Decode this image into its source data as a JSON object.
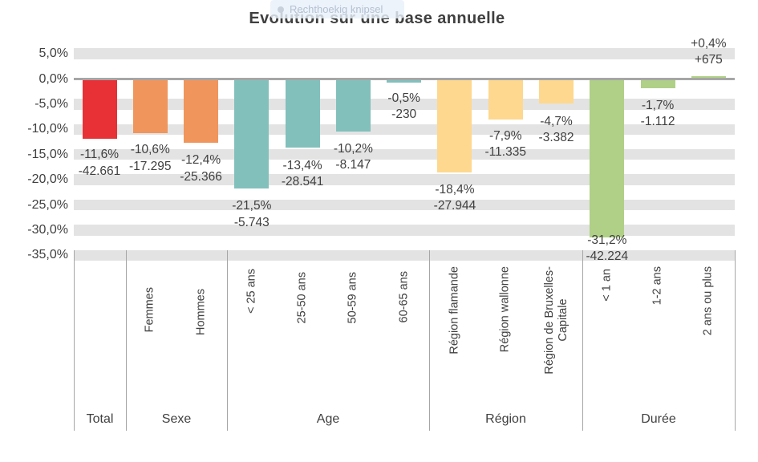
{
  "title": "Evolution sur une base annuelle",
  "snip_toolbar": {
    "icon": "snip-dot-icon",
    "label": "Rechthoekig knipsel"
  },
  "colors": {
    "total": "#e73137",
    "sexe": "#f0955c",
    "age": "#82c0bc",
    "region": "#fdd88e",
    "duree": "#afd086",
    "gridline_band": "#e3e3e3",
    "axis_line": "#a6a6a6",
    "text": "#404040"
  },
  "chart_data": {
    "type": "bar",
    "title": "Evolution sur une base annuelle",
    "ylabel": "",
    "xlabel": "",
    "ylim": [
      -35,
      5
    ],
    "y_axis": {
      "max": 5,
      "min": -35,
      "step": 5,
      "tick_labels": [
        "5,0%",
        "0,0%",
        "-5,0%",
        "-10,0%",
        "-15,0%",
        "-20,0%",
        "-25,0%",
        "-30,0%",
        "-35,0%"
      ],
      "gridlines": "thick-gray-bands"
    },
    "legend": "none",
    "groups": [
      {
        "label": "Total",
        "color": "#e73137",
        "bars": [
          {
            "category": "",
            "pct": -11.6,
            "pct_label": "-11,6%",
            "value_label": "-42.661"
          }
        ]
      },
      {
        "label": "Sexe",
        "color": "#f0955c",
        "bars": [
          {
            "category": "Femmes",
            "pct": -10.6,
            "pct_label": "-10,6%",
            "value_label": "-17.295"
          },
          {
            "category": "Hommes",
            "pct": -12.4,
            "pct_label": "-12,4%",
            "value_label": "-25.366"
          }
        ]
      },
      {
        "label": "Age",
        "color": "#82c0bc",
        "bars": [
          {
            "category": "< 25 ans",
            "pct": -21.5,
            "pct_label": "-21,5%",
            "value_label": "-5.743"
          },
          {
            "category": "25-50 ans",
            "pct": -13.4,
            "pct_label": "-13,4%",
            "value_label": "-28.541"
          },
          {
            "category": "50-59 ans",
            "pct": -10.2,
            "pct_label": "-10,2%",
            "value_label": "-8.147"
          },
          {
            "category": "60-65 ans",
            "pct": -0.5,
            "pct_label": "-0,5%",
            "value_label": "-230"
          }
        ]
      },
      {
        "label": "Région",
        "color": "#fdd88e",
        "bars": [
          {
            "category": "Région flamande",
            "pct": -18.4,
            "pct_label": "-18,4%",
            "value_label": "-27.944"
          },
          {
            "category": "Région wallonne",
            "pct": -7.9,
            "pct_label": "-7,9%",
            "value_label": "-11.335"
          },
          {
            "category": "Région de Bruxelles-\nCapitale",
            "pct": -4.7,
            "pct_label": "-4,7%",
            "value_label": "-3.382"
          }
        ]
      },
      {
        "label": "Durée",
        "color": "#afd086",
        "bars": [
          {
            "category": "< 1 an",
            "pct": -31.2,
            "pct_label": "-31,2%",
            "value_label": "-42.224"
          },
          {
            "category": "1-2 ans",
            "pct": -1.7,
            "pct_label": "-1,7%",
            "value_label": "-1.112"
          },
          {
            "category": "2 ans ou plus",
            "pct": 0.4,
            "pct_label": "+0,4%",
            "value_label": "+675"
          }
        ]
      }
    ]
  }
}
